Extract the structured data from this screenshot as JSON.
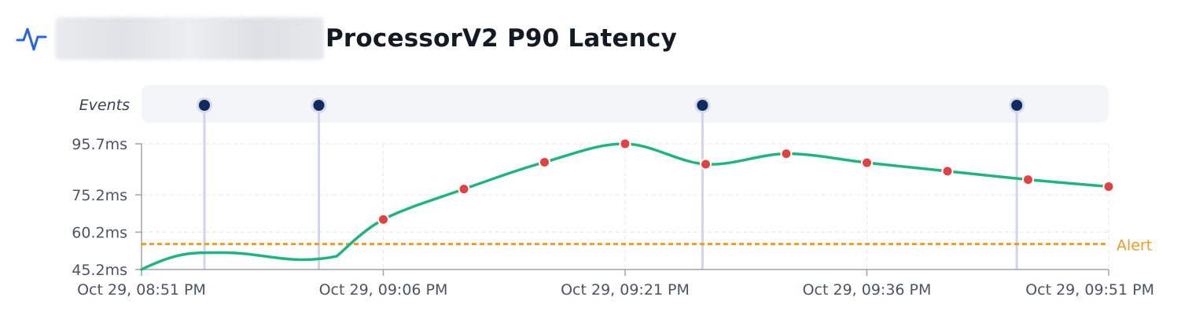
{
  "header": {
    "icon": "pulse-icon",
    "title": "ProcessorV2 P90 Latency"
  },
  "chart_data": {
    "type": "line",
    "title": "ProcessorV2 P90 Latency",
    "xlabel": "",
    "ylabel": "",
    "x_ticks": [
      "Oct 29, 08:51 PM",
      "Oct 29, 09:06 PM",
      "Oct 29, 09:21 PM",
      "Oct 29, 09:36 PM",
      "Oct 29, 09:51 PM"
    ],
    "y_ticks": [
      {
        "value": 95.7,
        "label": "95.7ms"
      },
      {
        "value": 75.2,
        "label": "75.2ms"
      },
      {
        "value": 60.2,
        "label": "60.2ms"
      },
      {
        "value": 45.2,
        "label": "45.2ms"
      }
    ],
    "xlim": [
      0,
      60
    ],
    "ylim": [
      45.2,
      95.7
    ],
    "grid": true,
    "series": [
      {
        "color": "#1fb57e",
        "marker_color": "#e34141",
        "x": [
          0,
          5,
          15,
          20,
          25,
          30,
          35,
          40,
          45,
          50,
          55,
          60
        ],
        "y": [
          45.2,
          52.0,
          65.3,
          77.5,
          88.3,
          95.7,
          87.5,
          91.7,
          88.1,
          84.7,
          81.3,
          78.5
        ],
        "markers_from_index": 2
      }
    ],
    "series_control_x": [
      12.1
    ],
    "series_control_y": [
      50.5
    ],
    "alert": {
      "label": "Alert",
      "value": 55.4,
      "color": "#f39a1c"
    },
    "events": {
      "label": "Events",
      "x": [
        3.9,
        11.0,
        34.8,
        54.3
      ],
      "color": "#0f2a5e"
    }
  }
}
